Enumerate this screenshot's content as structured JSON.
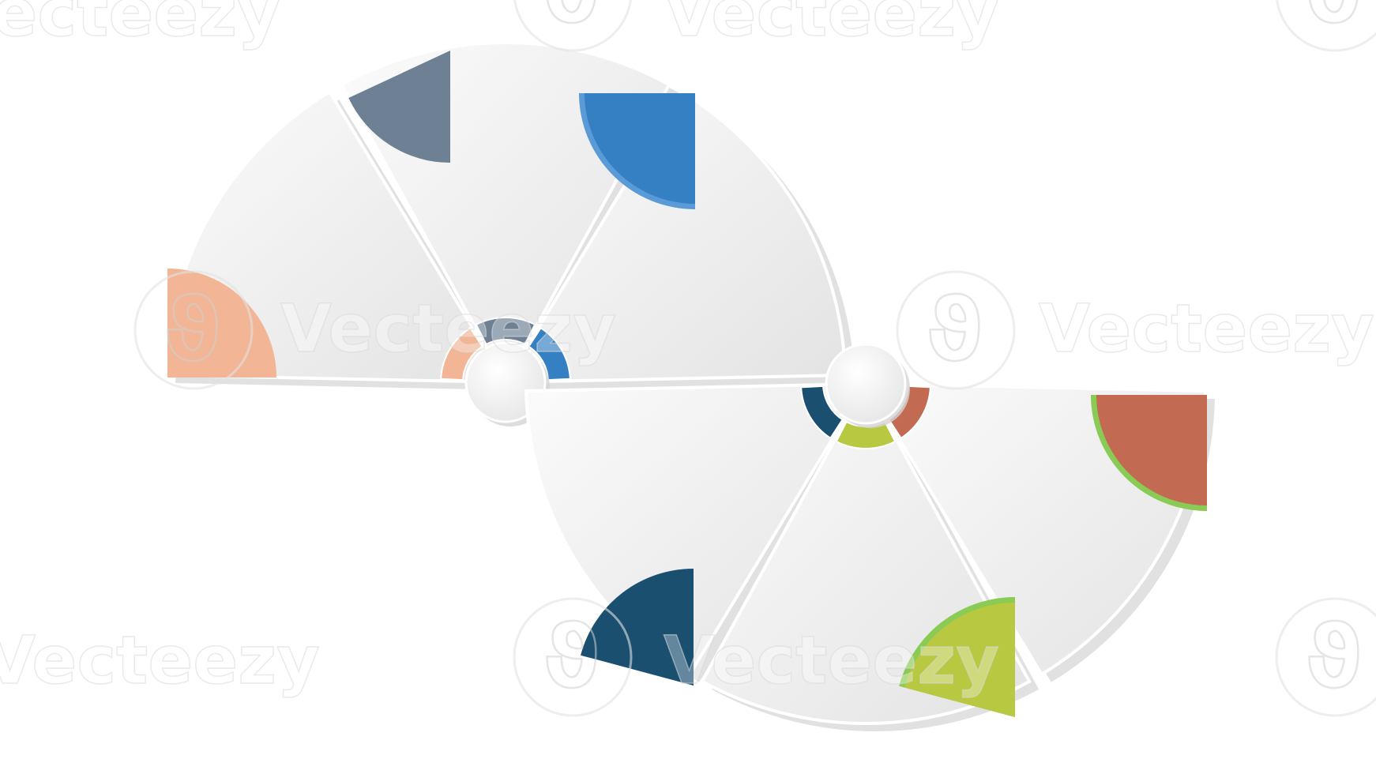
{
  "watermark": {
    "text": "Vecteezy"
  },
  "palette": {
    "panel_light": "#f6f6f6",
    "panel_dark": "#e4e4e4",
    "shadow": "#d4d4d4",
    "hub": "#f4f4f4"
  },
  "top_wheel": {
    "segments": [
      {
        "name": "segment-1",
        "color": "#f2b596",
        "accent_edge": ""
      },
      {
        "name": "segment-2",
        "color": "#6d8094",
        "accent_edge": ""
      },
      {
        "name": "segment-3",
        "color": "#3580c3",
        "accent_edge": "#5a9ad6"
      }
    ]
  },
  "bottom_wheel": {
    "segments": [
      {
        "name": "segment-4",
        "color": "#1a4f70",
        "accent_edge": ""
      },
      {
        "name": "segment-5",
        "color": "#b8c840",
        "accent_edge": "#8acb55"
      },
      {
        "name": "segment-6",
        "color": "#c26a52",
        "accent_edge": "#8acb55"
      }
    ]
  }
}
